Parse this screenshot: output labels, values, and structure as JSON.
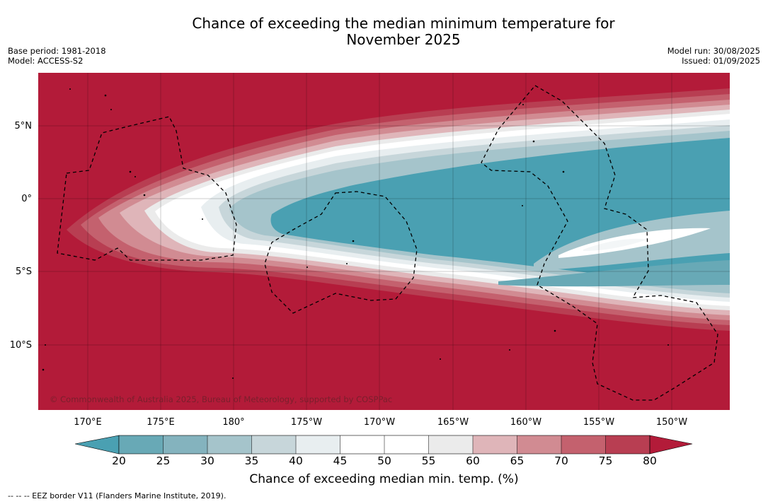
{
  "header": {
    "title_line1": "Chance of exceeding the median minimum temperature for",
    "title_line2": "November 2025",
    "base_period": "Base period: 1981-2018",
    "model": "Model: ACCESS-S2",
    "model_run": "Model run: 30/08/2025",
    "issued": "Issued: 01/09/2025"
  },
  "map": {
    "copyright": "© Commonwealth of Australia 2025, Bureau of Meteorology, supported by COSPPac",
    "lat_ticks": [
      "5°N",
      "0°",
      "5°S",
      "10°S"
    ],
    "lon_ticks": [
      "170°E",
      "175°E",
      "180°",
      "175°W",
      "170°W",
      "165°W",
      "160°W",
      "155°W",
      "150°W"
    ],
    "colors": {
      "above_80": "#b31b39",
      "c75_80": "#b83e52",
      "c70_75": "#c4616e",
      "c65_70": "#d18b92",
      "c60_65": "#dfb5b9",
      "c55_60": "#ebebeb",
      "c50_55": "#ffffff",
      "c45_50": "#ffffff",
      "c40_45": "#e8eef0",
      "c35_40": "#c7d6da",
      "c30_35": "#a5c4cb",
      "c25_30": "#84b3be",
      "c20_25": "#68a9b6",
      "below_20": "#4aa0b2"
    }
  },
  "colorbar": {
    "ticks": [
      "20",
      "25",
      "30",
      "35",
      "40",
      "45",
      "50",
      "55",
      "60",
      "65",
      "70",
      "75",
      "80"
    ],
    "label": "Chance of exceeding median min. temp. (%)"
  },
  "footnote": "--  --  -- EEZ border V11 (Flanders Marine Institute, 2019)."
}
